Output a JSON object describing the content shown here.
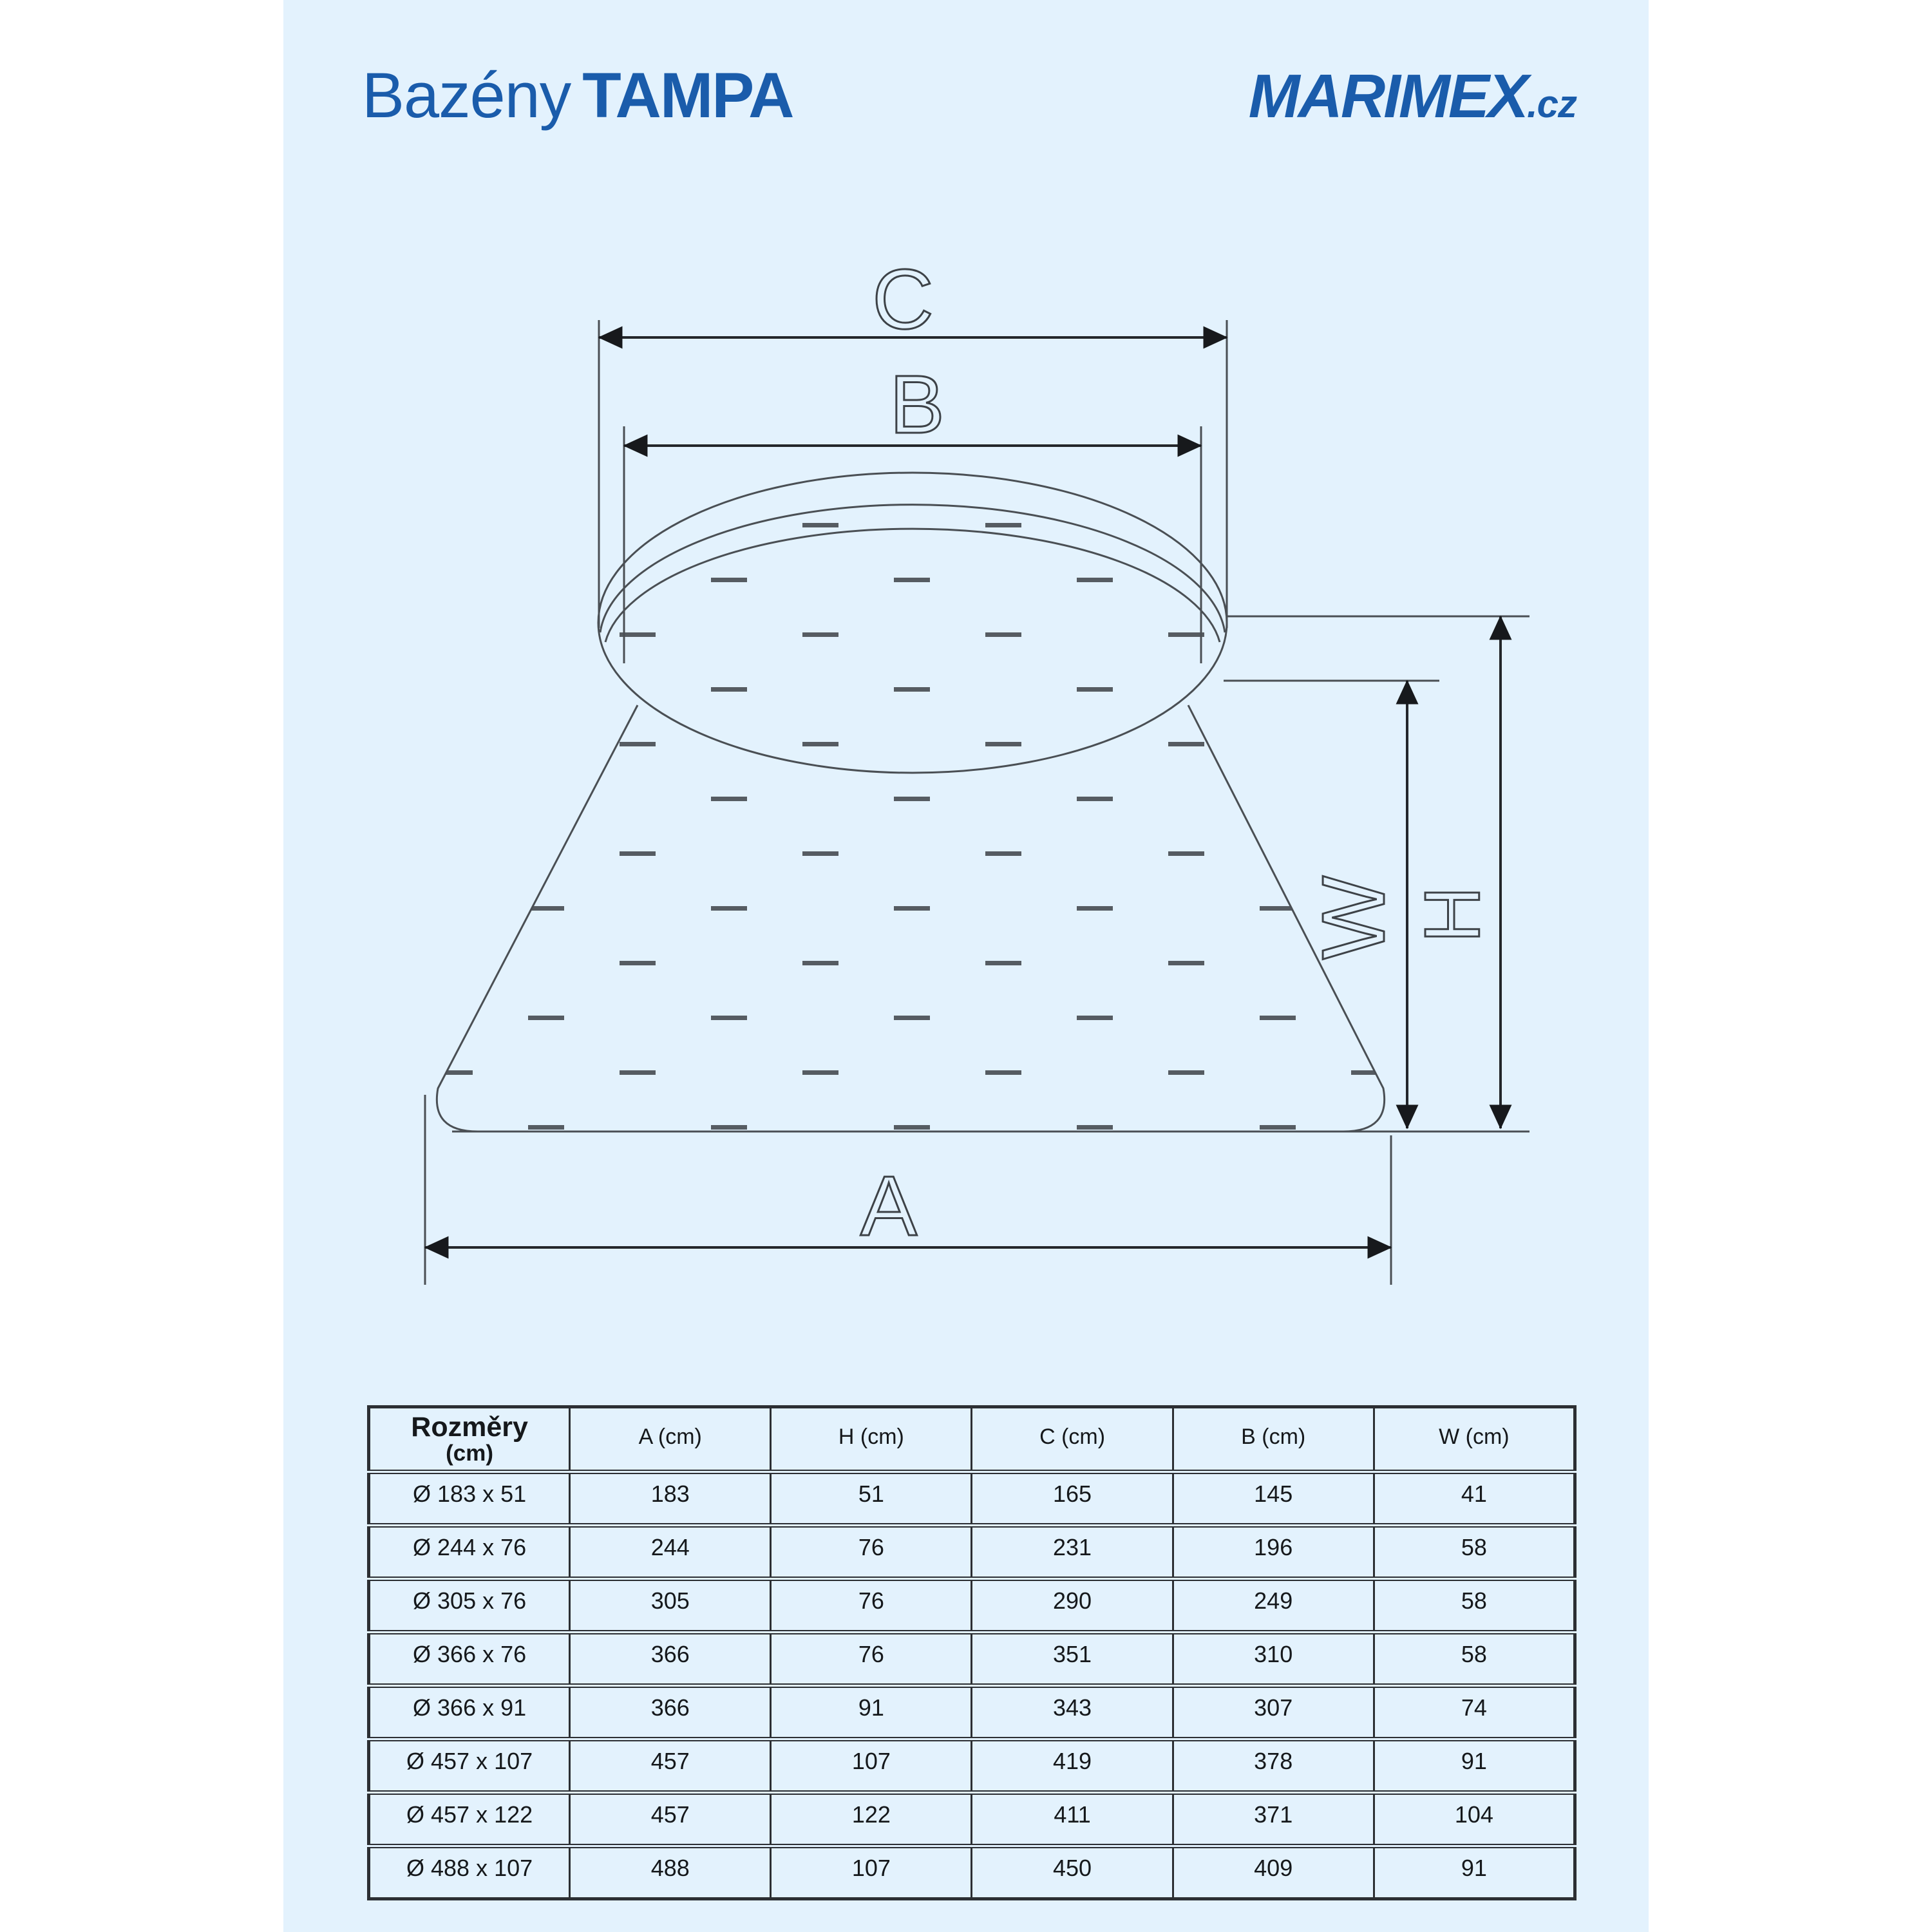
{
  "page": {
    "background": "#e3f2fd",
    "accent_blue": "#1a5cab"
  },
  "header": {
    "brand_prefix": "Bazény",
    "brand_name": "TAMPA",
    "logo_text": "MARIMEX",
    "logo_suffix": ".cz"
  },
  "diagram": {
    "labels": {
      "top_outer": "C",
      "top_inner": "B",
      "bottom": "A",
      "water_height": "W",
      "total_height": "H"
    }
  },
  "table": {
    "corner_header": "Rozměry",
    "corner_unit": "(cm)",
    "columns": [
      "A (cm)",
      "H (cm)",
      "C (cm)",
      "B (cm)",
      "W (cm)"
    ],
    "rows": [
      {
        "size": "Ø 183 x 51",
        "values": [
          "183",
          "51",
          "165",
          "145",
          "41"
        ]
      },
      {
        "size": "Ø 244 x 76",
        "values": [
          "244",
          "76",
          "231",
          "196",
          "58"
        ]
      },
      {
        "size": "Ø 305 x 76",
        "values": [
          "305",
          "76",
          "290",
          "249",
          "58"
        ]
      },
      {
        "size": "Ø 366 x 76",
        "values": [
          "366",
          "76",
          "351",
          "310",
          "58"
        ]
      },
      {
        "size": "Ø 366 x 91",
        "values": [
          "366",
          "91",
          "343",
          "307",
          "74"
        ]
      },
      {
        "size": "Ø 457 x 107",
        "values": [
          "457",
          "107",
          "419",
          "378",
          "91"
        ]
      },
      {
        "size": "Ø 457 x 122",
        "values": [
          "457",
          "122",
          "411",
          "371",
          "104"
        ]
      },
      {
        "size": "Ø 488 x 107",
        "values": [
          "488",
          "107",
          "450",
          "409",
          "91"
        ]
      }
    ]
  }
}
